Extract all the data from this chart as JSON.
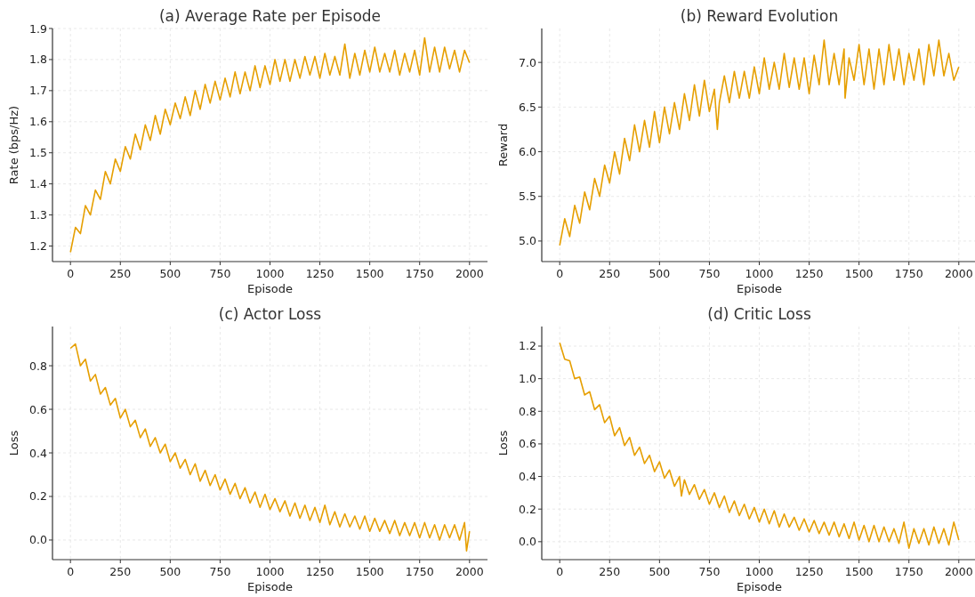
{
  "chart_data": [
    {
      "type": "line",
      "title": "(a) Average Rate per Episode",
      "xlabel": "Episode",
      "ylabel": "Rate (bps/Hz)",
      "xlim": [
        -90,
        2090
      ],
      "xticks": [
        0,
        250,
        500,
        750,
        1000,
        1250,
        1500,
        1750,
        2000
      ],
      "ylim": [
        1.15,
        1.9
      ],
      "yticks": [
        1.2,
        1.3,
        1.4,
        1.5,
        1.6,
        1.7,
        1.8,
        1.9
      ],
      "grid": true,
      "series": [
        {
          "color": "#e69f00",
          "x": [
            0,
            25,
            50,
            75,
            100,
            125,
            150,
            175,
            200,
            225,
            250,
            275,
            300,
            325,
            350,
            375,
            400,
            425,
            450,
            475,
            500,
            525,
            550,
            575,
            600,
            625,
            650,
            675,
            700,
            725,
            750,
            775,
            800,
            825,
            850,
            875,
            900,
            925,
            950,
            975,
            1000,
            1025,
            1050,
            1075,
            1100,
            1125,
            1150,
            1175,
            1200,
            1225,
            1250,
            1275,
            1300,
            1325,
            1350,
            1375,
            1400,
            1425,
            1450,
            1475,
            1500,
            1525,
            1550,
            1575,
            1600,
            1625,
            1650,
            1675,
            1700,
            1725,
            1750,
            1775,
            1800,
            1825,
            1850,
            1875,
            1900,
            1925,
            1950,
            1975,
            2000
          ],
          "values": [
            1.18,
            1.26,
            1.24,
            1.33,
            1.3,
            1.38,
            1.35,
            1.44,
            1.4,
            1.48,
            1.44,
            1.52,
            1.48,
            1.56,
            1.51,
            1.59,
            1.54,
            1.62,
            1.56,
            1.64,
            1.59,
            1.66,
            1.61,
            1.68,
            1.62,
            1.7,
            1.64,
            1.72,
            1.66,
            1.73,
            1.67,
            1.74,
            1.68,
            1.76,
            1.69,
            1.76,
            1.7,
            1.78,
            1.71,
            1.78,
            1.72,
            1.8,
            1.73,
            1.8,
            1.73,
            1.8,
            1.74,
            1.81,
            1.75,
            1.81,
            1.74,
            1.82,
            1.75,
            1.81,
            1.75,
            1.85,
            1.74,
            1.82,
            1.75,
            1.83,
            1.76,
            1.84,
            1.76,
            1.82,
            1.76,
            1.83,
            1.75,
            1.82,
            1.76,
            1.83,
            1.75,
            1.87,
            1.76,
            1.84,
            1.76,
            1.84,
            1.77,
            1.83,
            1.76,
            1.83,
            1.79
          ]
        }
      ]
    },
    {
      "type": "line",
      "title": "(b) Reward Evolution",
      "xlabel": "Episode",
      "ylabel": "Reward",
      "xlim": [
        -90,
        2090
      ],
      "xticks": [
        0,
        250,
        500,
        750,
        1000,
        1250,
        1500,
        1750,
        2000
      ],
      "ylim": [
        4.77,
        7.38
      ],
      "yticks": [
        {
          "value": 5,
          "label": "5.0"
        },
        5.5,
        {
          "value": 6,
          "label": "6.0"
        },
        6.5,
        {
          "value": 7,
          "label": "7.0"
        }
      ],
      "grid": true,
      "series": [
        {
          "color": "#e69f00",
          "x": [
            0,
            25,
            50,
            75,
            100,
            125,
            150,
            175,
            200,
            225,
            250,
            275,
            300,
            325,
            350,
            375,
            400,
            425,
            450,
            475,
            500,
            525,
            550,
            575,
            600,
            625,
            650,
            675,
            700,
            725,
            750,
            775,
            790,
            800,
            825,
            850,
            875,
            900,
            925,
            950,
            975,
            1000,
            1025,
            1050,
            1075,
            1100,
            1125,
            1150,
            1175,
            1200,
            1225,
            1250,
            1275,
            1300,
            1325,
            1350,
            1375,
            1400,
            1425,
            1430,
            1450,
            1475,
            1500,
            1525,
            1550,
            1575,
            1600,
            1625,
            1650,
            1675,
            1700,
            1725,
            1750,
            1775,
            1800,
            1825,
            1850,
            1875,
            1900,
            1925,
            1950,
            1975,
            2000
          ],
          "values": [
            4.95,
            5.25,
            5.05,
            5.4,
            5.2,
            5.55,
            5.35,
            5.7,
            5.5,
            5.85,
            5.65,
            6.0,
            5.75,
            6.15,
            5.9,
            6.3,
            6.0,
            6.35,
            6.05,
            6.45,
            6.1,
            6.5,
            6.2,
            6.55,
            6.25,
            6.65,
            6.35,
            6.75,
            6.4,
            6.8,
            6.45,
            6.7,
            6.25,
            6.55,
            6.85,
            6.55,
            6.9,
            6.6,
            6.9,
            6.6,
            6.95,
            6.65,
            7.05,
            6.7,
            7.0,
            6.7,
            7.1,
            6.72,
            7.05,
            6.7,
            7.05,
            6.65,
            7.08,
            6.75,
            7.25,
            6.75,
            7.1,
            6.75,
            7.15,
            6.6,
            7.05,
            6.8,
            7.2,
            6.75,
            7.15,
            6.7,
            7.15,
            6.75,
            7.2,
            6.8,
            7.15,
            6.75,
            7.1,
            6.8,
            7.15,
            6.75,
            7.2,
            6.85,
            7.25,
            6.85,
            7.1,
            6.8,
            6.95
          ]
        }
      ]
    },
    {
      "type": "line",
      "title": "(c) Actor Loss",
      "xlabel": "Episode",
      "ylabel": "Loss",
      "xlim": [
        -90,
        2090
      ],
      "xticks": [
        0,
        250,
        500,
        750,
        1000,
        1250,
        1500,
        1750,
        2000
      ],
      "ylim": [
        -0.09,
        0.98
      ],
      "yticks": [
        {
          "value": 0,
          "label": "0.0"
        },
        0.2,
        0.4,
        0.6,
        0.8
      ],
      "grid": true,
      "series": [
        {
          "color": "#e69f00",
          "x": [
            0,
            25,
            50,
            75,
            100,
            125,
            150,
            175,
            200,
            225,
            250,
            275,
            300,
            325,
            350,
            375,
            400,
            425,
            450,
            475,
            500,
            525,
            550,
            575,
            600,
            625,
            650,
            675,
            700,
            725,
            750,
            775,
            800,
            825,
            850,
            875,
            900,
            925,
            950,
            975,
            1000,
            1025,
            1050,
            1075,
            1100,
            1125,
            1150,
            1175,
            1200,
            1225,
            1250,
            1275,
            1300,
            1325,
            1350,
            1375,
            1400,
            1425,
            1450,
            1475,
            1500,
            1525,
            1550,
            1575,
            1600,
            1625,
            1650,
            1675,
            1700,
            1725,
            1750,
            1775,
            1800,
            1825,
            1850,
            1875,
            1900,
            1925,
            1950,
            1975,
            1985,
            2000
          ],
          "values": [
            0.88,
            0.9,
            0.8,
            0.83,
            0.73,
            0.76,
            0.67,
            0.7,
            0.62,
            0.65,
            0.56,
            0.6,
            0.52,
            0.55,
            0.47,
            0.51,
            0.43,
            0.47,
            0.4,
            0.44,
            0.36,
            0.4,
            0.33,
            0.37,
            0.3,
            0.35,
            0.27,
            0.32,
            0.25,
            0.3,
            0.23,
            0.28,
            0.21,
            0.26,
            0.19,
            0.24,
            0.17,
            0.22,
            0.15,
            0.21,
            0.14,
            0.19,
            0.13,
            0.18,
            0.11,
            0.17,
            0.1,
            0.16,
            0.09,
            0.15,
            0.08,
            0.16,
            0.07,
            0.13,
            0.06,
            0.12,
            0.06,
            0.11,
            0.05,
            0.11,
            0.04,
            0.1,
            0.04,
            0.09,
            0.03,
            0.09,
            0.02,
            0.08,
            0.02,
            0.08,
            0.01,
            0.08,
            0.01,
            0.07,
            0.0,
            0.07,
            0.01,
            0.07,
            0.0,
            0.08,
            -0.05,
            0.04
          ]
        }
      ]
    },
    {
      "type": "line",
      "title": "(d) Critic Loss",
      "xlabel": "Episode",
      "ylabel": "Loss",
      "xlim": [
        -90,
        2090
      ],
      "xticks": [
        0,
        250,
        500,
        750,
        1000,
        1250,
        1500,
        1750,
        2000
      ],
      "ylim": [
        -0.11,
        1.32
      ],
      "yticks": [
        {
          "value": 0,
          "label": "0.0"
        },
        0.2,
        0.4,
        0.6,
        0.8,
        {
          "value": 1,
          "label": "1.0"
        },
        1.2
      ],
      "grid": true,
      "series": [
        {
          "color": "#e69f00",
          "x": [
            0,
            25,
            50,
            75,
            100,
            125,
            150,
            175,
            200,
            225,
            250,
            275,
            300,
            325,
            350,
            375,
            400,
            425,
            450,
            475,
            500,
            525,
            550,
            575,
            600,
            610,
            625,
            650,
            675,
            700,
            725,
            750,
            775,
            800,
            825,
            850,
            875,
            900,
            925,
            950,
            975,
            1000,
            1025,
            1050,
            1075,
            1100,
            1125,
            1150,
            1175,
            1200,
            1225,
            1250,
            1275,
            1300,
            1325,
            1350,
            1375,
            1400,
            1425,
            1450,
            1475,
            1500,
            1525,
            1550,
            1575,
            1600,
            1625,
            1650,
            1675,
            1700,
            1725,
            1750,
            1775,
            1800,
            1825,
            1850,
            1875,
            1900,
            1925,
            1950,
            1975,
            2000
          ],
          "values": [
            1.22,
            1.12,
            1.11,
            1.0,
            1.01,
            0.9,
            0.92,
            0.81,
            0.84,
            0.73,
            0.77,
            0.65,
            0.7,
            0.59,
            0.64,
            0.53,
            0.58,
            0.48,
            0.53,
            0.43,
            0.49,
            0.39,
            0.44,
            0.34,
            0.4,
            0.28,
            0.38,
            0.29,
            0.35,
            0.26,
            0.32,
            0.23,
            0.3,
            0.21,
            0.28,
            0.18,
            0.25,
            0.16,
            0.23,
            0.14,
            0.21,
            0.12,
            0.2,
            0.11,
            0.19,
            0.09,
            0.17,
            0.09,
            0.15,
            0.07,
            0.14,
            0.06,
            0.13,
            0.05,
            0.12,
            0.04,
            0.12,
            0.03,
            0.11,
            0.02,
            0.12,
            0.01,
            0.1,
            0.0,
            0.1,
            0.0,
            0.09,
            0.0,
            0.08,
            -0.01,
            0.12,
            -0.04,
            0.08,
            -0.01,
            0.08,
            -0.02,
            0.09,
            -0.01,
            0.08,
            -0.02,
            0.12,
            0.01
          ]
        }
      ]
    }
  ]
}
